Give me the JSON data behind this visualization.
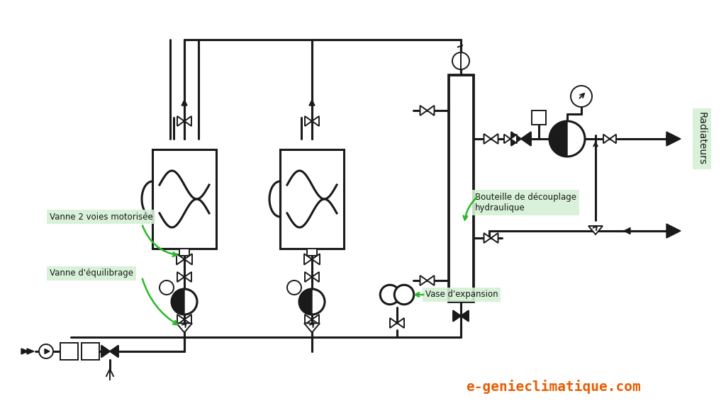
{
  "bg_color": "#ffffff",
  "line_color": "#1a1a1a",
  "label_bg": "#d4f0d4",
  "label_text_color": "#1a1a1a",
  "arrow_color": "#2ab82a",
  "title_color": "#e85d04",
  "title_text": "e-genieclimatique.com",
  "label_vanne2voies": "Vanne 2 voies motorisée",
  "label_equilibrage": "Vanne d'équilibrage",
  "label_bouteille": "Bouteille de découplage\nhydraulique",
  "label_vase": "Vase d'expansion",
  "label_radiateurs": "Radiateurs",
  "lw": 2.2,
  "lw_thin": 1.4
}
